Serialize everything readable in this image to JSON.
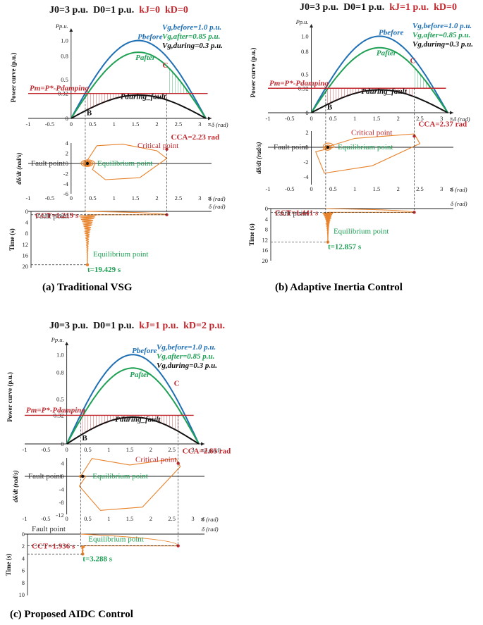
{
  "colors": {
    "before": "#1f6fb5",
    "after": "#1fa055",
    "during": "#111111",
    "pm": "#c0282e",
    "traj": "#e8822a",
    "red": "#c0282e",
    "green": "#1fa055",
    "blue": "#1f6fb5"
  },
  "panels": [
    {
      "params": {
        "j0": "J0=3 p.u.",
        "d0": "D0=1 p.u.",
        "kj": "kJ=0",
        "kd": "kD=0"
      },
      "caption": "(a) Traditional VSG",
      "legend": {
        "before": "Vg,before=1.0 p.u.",
        "after": "Vg,after=0.85 p.u.",
        "during": "Vg,during=0.3 p.u."
      },
      "labels": {
        "p_before": "Pbefore",
        "p_after": "Pafter",
        "p_during": "Pduring_fault",
        "pm": "Pm=P*-Pdamping",
        "point_b": "B",
        "point_c": "C"
      },
      "phase": {
        "fault": "Fault point",
        "eq": "Equilibrium point",
        "critical": "Critical point",
        "cca": "CCA=2.23 rad"
      },
      "time": {
        "fault": "Fault point",
        "cct": "CCT=1.219 s",
        "eq": "Equilibrium point",
        "t_end": "t=19.429 s"
      },
      "axes": {
        "power_y": "Power curve (p.u.)",
        "phase_y": "dδ/dt (rad/s)",
        "time_y": "Time (s)",
        "x": "δ (rad)",
        "p_unit": "Pp.u.",
        "x_ticks": [
          "-1",
          "-0.5",
          "0",
          "0.5",
          "1",
          "1.5",
          "2",
          "2.5",
          "3",
          "π"
        ],
        "power_ticks": [
          "0",
          "0.32",
          "0.5",
          "0.8",
          "1.0"
        ],
        "phase_ticks": [
          "4",
          "2",
          "0",
          "-2",
          "-4",
          "-6"
        ],
        "time_ticks": [
          "0",
          "4",
          "8",
          "12",
          "16",
          "20"
        ]
      }
    },
    {
      "params": {
        "j0": "J0=3 p.u.",
        "d0": "D0=1 p.u.",
        "kj": "kJ=1 p.u.",
        "kd": "kD=0"
      },
      "caption": "(b) Adaptive Inertia Control",
      "legend": {
        "before": "Vg,before=1.0 p.u.",
        "after": "Vg,after=0.85 p.u.",
        "during": "Vg,during=0.3 p.u."
      },
      "labels": {
        "p_before": "Pbefore",
        "p_after": "Pafter",
        "p_during": "Pduring_fault",
        "pm": "Pm=P*-Pdamping",
        "point_b": "B",
        "point_c": "C"
      },
      "phase": {
        "fault": "Fault point",
        "eq": "Equilibrium point",
        "critical": "Critical point",
        "cca": "CCA=2.37 rad"
      },
      "time": {
        "fault": "Fault point",
        "cct": "CCT=1.441 s",
        "eq": "Equilibrium point",
        "t_end": "t=12.857 s"
      },
      "axes": {
        "power_y": "Power curve (p.u.)",
        "phase_y": "dδ/dt (rad/s)",
        "time_y": "Time (s)",
        "x": "δ (rad)",
        "p_unit": "Pp.u.",
        "x_ticks": [
          "-1",
          "-0.5",
          "0",
          "0.5",
          "1",
          "1.5",
          "2",
          "2.5",
          "3",
          "π"
        ],
        "power_ticks": [
          "0",
          "0.32",
          "0.5",
          "0.8",
          "1.0"
        ],
        "phase_ticks": [
          "2",
          "0",
          "-2",
          "-4"
        ],
        "time_ticks": [
          "0",
          "4",
          "8",
          "12",
          "16",
          "20"
        ]
      }
    },
    {
      "params": {
        "j0": "J0=3 p.u.",
        "d0": "D0=1 p.u.",
        "kj": "kJ=1 p.u.",
        "kd": "kD=2 p.u."
      },
      "caption": "(c) Proposed AIDC Control",
      "legend": {
        "before": "Vg,before=1.0 p.u.",
        "after": "Vg,after=0.85 p.u.",
        "during": "Vg,during=0.3 p.u."
      },
      "labels": {
        "p_before": "Pbefore",
        "p_after": "Pafter",
        "p_during": "Pduring_fault",
        "pm": "Pm=P*-Pdamping",
        "point_b": "B",
        "point_c": "C"
      },
      "phase": {
        "fault": "Fault point",
        "eq": "Equilibrium point",
        "critical": "Critical point",
        "cca": "CCA=2.65 rad"
      },
      "time": {
        "fault": "Fault point",
        "cct": "CCT=1.936 s",
        "eq": "Equilibrium point",
        "t_end": "t=3.288 s"
      },
      "axes": {
        "power_y": "Power curve (p.u.)",
        "phase_y": "dδ/dt (rad/s)",
        "time_y": "Time (s)",
        "x": "δ (rad)",
        "p_unit": "Pp.u.",
        "x_ticks": [
          "-1",
          "-0.5",
          "0",
          "0.5",
          "1",
          "1.5",
          "2",
          "2.5",
          "3",
          "π"
        ],
        "power_ticks": [
          "0",
          "0.32",
          "0.5",
          "0.8",
          "1.0"
        ],
        "phase_ticks": [
          "4",
          "0",
          "-4",
          "-8",
          "-12"
        ],
        "time_ticks": [
          "0",
          "2",
          "4",
          "6",
          "8",
          "10"
        ]
      }
    }
  ],
  "chart_data": [
    {
      "type": "line",
      "panel": "(a) Traditional VSG",
      "x_label": "δ (rad)",
      "xlim": [
        -1,
        3.1416
      ],
      "series": [
        {
          "name": "Pbefore",
          "function": "1.0*sin(δ)"
        },
        {
          "name": "Pafter",
          "function": "0.85*sin(δ)"
        },
        {
          "name": "Pduring_fault",
          "function": "0.3*sin(δ)"
        },
        {
          "name": "Pm=P*-Pdamping",
          "constant": 0.32
        }
      ],
      "fault_angle": 0.33,
      "cca": 2.23,
      "cct": 1.219,
      "settle_time": 19.429
    },
    {
      "type": "line",
      "panel": "(b) Adaptive Inertia Control",
      "x_label": "δ (rad)",
      "xlim": [
        -1,
        3.1416
      ],
      "series": [
        {
          "name": "Pbefore",
          "function": "1.0*sin(δ)"
        },
        {
          "name": "Pafter",
          "function": "0.85*sin(δ)"
        },
        {
          "name": "Pduring_fault",
          "function": "0.3*sin(δ)"
        },
        {
          "name": "Pm=P*-Pdamping",
          "constant": 0.32
        }
      ],
      "fault_angle": 0.33,
      "cca": 2.37,
      "cct": 1.441,
      "settle_time": 12.857
    },
    {
      "type": "line",
      "panel": "(c) Proposed AIDC Control",
      "x_label": "δ (rad)",
      "xlim": [
        -1,
        3.1416
      ],
      "series": [
        {
          "name": "Pbefore",
          "function": "1.0*sin(δ)"
        },
        {
          "name": "Pafter",
          "function": "0.85*sin(δ)"
        },
        {
          "name": "Pduring_fault",
          "function": "0.3*sin(δ)"
        },
        {
          "name": "Pm=P*-Pdamping",
          "constant": 0.32
        }
      ],
      "fault_angle": 0.33,
      "cca": 2.65,
      "cct": 1.936,
      "settle_time": 3.288
    }
  ]
}
